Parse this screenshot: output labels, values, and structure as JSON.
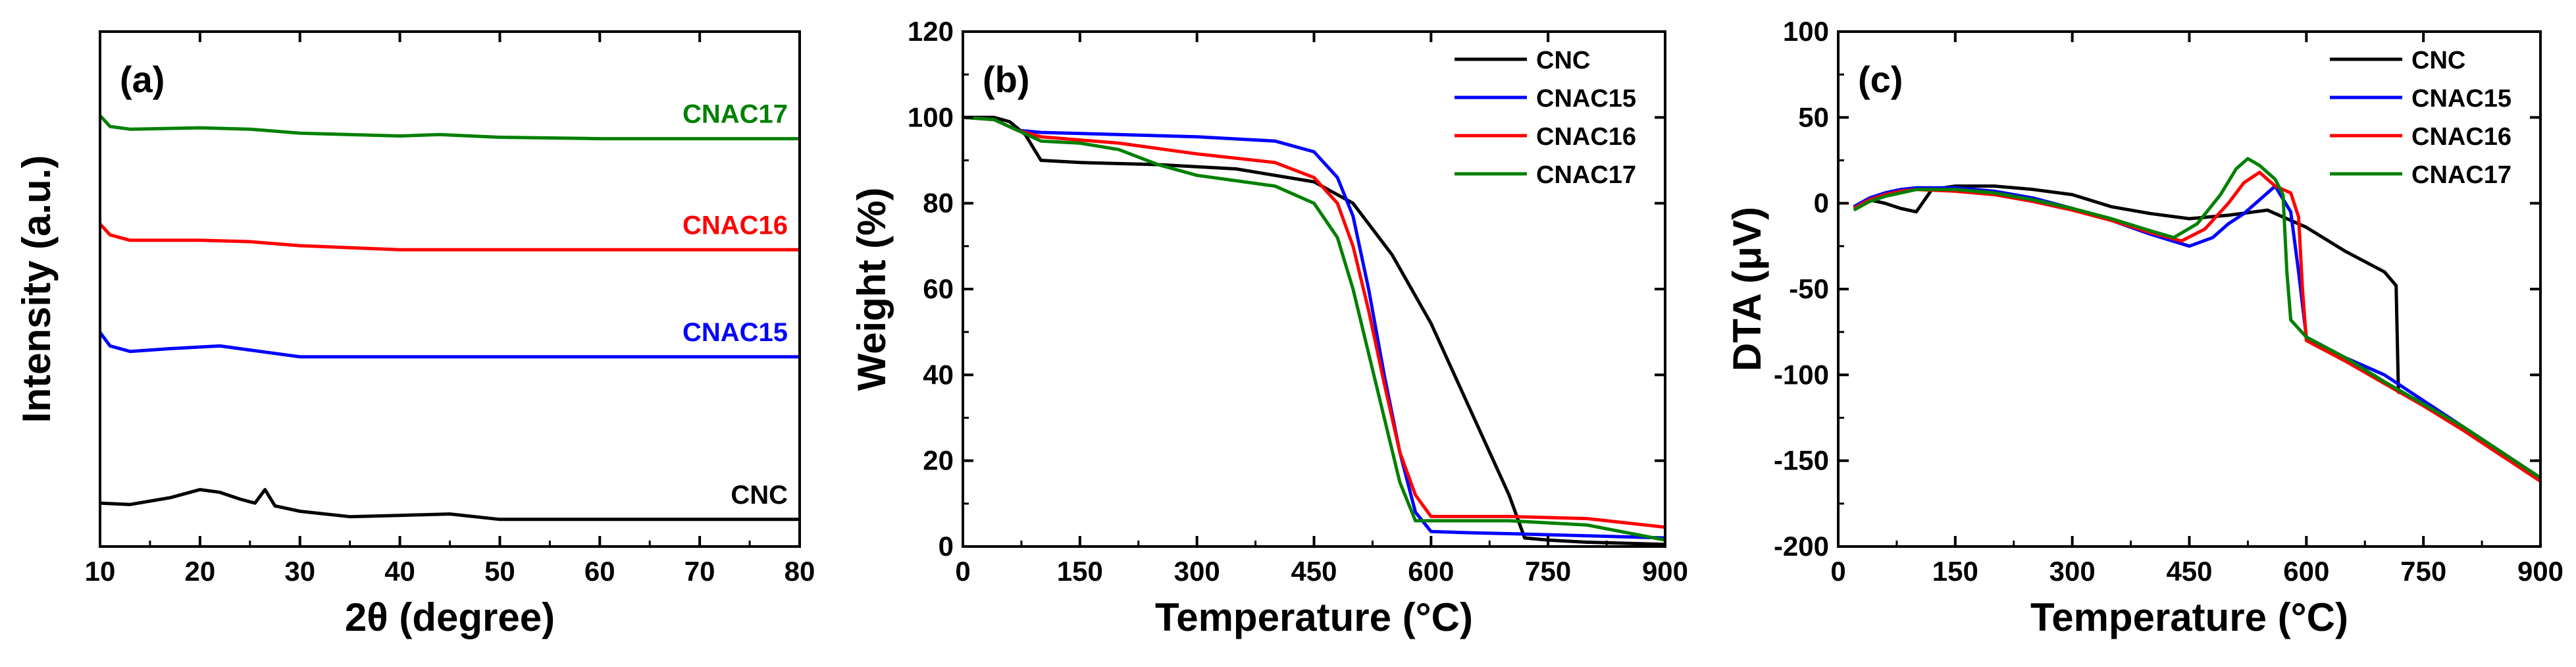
{
  "chart_data": [
    {
      "type": "line",
      "panel_label": "(a)",
      "title": "",
      "xlabel": "2θ (degree)",
      "ylabel": "Intensity (a.u.)",
      "xlim": [
        10,
        80
      ],
      "xticks": [
        "10",
        "20",
        "30",
        "40",
        "50",
        "60",
        "70",
        "80"
      ],
      "y_ticks_shown": false,
      "ylim": [
        -0.2,
        3.6
      ],
      "legend": "inline-right",
      "series": [
        {
          "name": "CNC",
          "color": "#000000",
          "x": [
            10,
            13,
            17,
            20,
            22,
            24,
            25.5,
            26.5,
            27.5,
            30,
            35,
            40,
            45,
            50,
            60,
            70,
            80
          ],
          "y": [
            0.12,
            0.11,
            0.16,
            0.22,
            0.2,
            0.15,
            0.12,
            0.22,
            0.1,
            0.06,
            0.02,
            0.03,
            0.04,
            0.0,
            0.0,
            0.0,
            0.0
          ]
        },
        {
          "name": "CNAC15",
          "color": "#0000ff",
          "x": [
            10,
            11,
            13,
            17,
            22,
            26,
            30,
            40,
            50,
            60,
            70,
            80
          ],
          "y": [
            1.38,
            1.28,
            1.24,
            1.26,
            1.28,
            1.24,
            1.2,
            1.2,
            1.2,
            1.2,
            1.2,
            1.2
          ]
        },
        {
          "name": "CNAC16",
          "color": "#ff0000",
          "x": [
            10,
            11,
            13,
            20,
            25,
            30,
            40,
            50,
            60,
            70,
            80
          ],
          "y": [
            2.18,
            2.1,
            2.06,
            2.06,
            2.05,
            2.02,
            1.99,
            1.99,
            1.99,
            1.99,
            1.99
          ]
        },
        {
          "name": "CNAC17",
          "color": "#008000",
          "x": [
            10,
            11,
            13,
            20,
            25,
            30,
            40,
            44,
            50,
            60,
            70,
            80
          ],
          "y": [
            2.98,
            2.9,
            2.88,
            2.89,
            2.88,
            2.85,
            2.83,
            2.84,
            2.82,
            2.81,
            2.81,
            2.81
          ]
        }
      ]
    },
    {
      "type": "line",
      "panel_label": "(b)",
      "title": "",
      "xlabel": "Temperature (°C)",
      "ylabel": "Weight (%)",
      "xlim": [
        0,
        900
      ],
      "ylim": [
        0,
        120
      ],
      "xticks": [
        "0",
        "150",
        "300",
        "450",
        "600",
        "750",
        "900"
      ],
      "yticks": [
        "0",
        "20",
        "40",
        "60",
        "80",
        "100",
        "120"
      ],
      "legend": "top-right",
      "series": [
        {
          "name": "CNC",
          "color": "#000000",
          "x": [
            0,
            40,
            60,
            80,
            100,
            150,
            250,
            350,
            450,
            500,
            550,
            600,
            650,
            700,
            720,
            750,
            800,
            900
          ],
          "y": [
            100,
            100,
            99,
            96,
            90,
            89.5,
            89,
            88,
            85,
            80,
            68,
            52,
            32,
            12,
            2,
            1.5,
            1,
            0.5
          ]
        },
        {
          "name": "CNAC15",
          "color": "#0000ff",
          "x": [
            0,
            40,
            70,
            100,
            200,
            300,
            400,
            450,
            480,
            500,
            520,
            540,
            560,
            580,
            600,
            650,
            700,
            800,
            900
          ],
          "y": [
            100,
            99.5,
            97,
            96.5,
            96,
            95.5,
            94.5,
            92,
            86,
            77,
            60,
            40,
            22,
            8,
            3.5,
            3.2,
            3,
            2.5,
            2
          ]
        },
        {
          "name": "CNAC16",
          "color": "#ff0000",
          "x": [
            0,
            40,
            70,
            100,
            200,
            300,
            400,
            450,
            480,
            500,
            520,
            540,
            560,
            580,
            600,
            650,
            700,
            800,
            900
          ],
          "y": [
            100,
            99.5,
            97,
            95.5,
            94,
            91.5,
            89.5,
            86,
            80,
            70,
            55,
            38,
            22,
            12,
            7,
            7,
            7,
            6.5,
            4.5
          ]
        },
        {
          "name": "CNAC17",
          "color": "#008000",
          "x": [
            0,
            40,
            70,
            100,
            150,
            200,
            250,
            300,
            400,
            450,
            480,
            500,
            520,
            540,
            560,
            580,
            600,
            650,
            700,
            800,
            900
          ],
          "y": [
            100,
            99.5,
            97,
            94.5,
            94,
            92.5,
            89,
            86.5,
            84,
            80,
            72,
            60,
            45,
            30,
            15,
            6,
            6,
            6,
            6,
            5,
            1.5
          ]
        }
      ]
    },
    {
      "type": "line",
      "panel_label": "(c)",
      "title": "",
      "xlabel": "Temperature (°C)",
      "ylabel": "DTA (μV)",
      "xlim": [
        0,
        900
      ],
      "ylim": [
        -200,
        100
      ],
      "xticks": [
        "0",
        "150",
        "300",
        "450",
        "600",
        "750",
        "900"
      ],
      "yticks": [
        "-200",
        "-150",
        "-100",
        "-50",
        "0",
        "50",
        "100"
      ],
      "legend": "top-right",
      "series": [
        {
          "name": "CNC",
          "color": "#000000",
          "x": [
            20,
            40,
            60,
            80,
            100,
            120,
            150,
            200,
            250,
            300,
            350,
            400,
            450,
            500,
            550,
            600,
            650,
            700,
            715,
            718,
            730,
            750,
            800,
            900
          ],
          "y": [
            -2,
            2,
            0,
            -3,
            -5,
            8,
            10,
            10,
            8,
            5,
            -2,
            -6,
            -9,
            -7,
            -4,
            -14,
            -28,
            -40,
            -48,
            -110,
            -112,
            -117,
            -130,
            -160
          ]
        },
        {
          "name": "CNAC15",
          "color": "#0000ff",
          "x": [
            20,
            40,
            60,
            80,
            100,
            150,
            200,
            250,
            300,
            350,
            400,
            450,
            480,
            500,
            520,
            540,
            560,
            580,
            590,
            600,
            650,
            700,
            750,
            800,
            900
          ],
          "y": [
            -2,
            3,
            6,
            8,
            9,
            9,
            7,
            3,
            -3,
            -10,
            -18,
            -25,
            -20,
            -12,
            -6,
            2,
            10,
            -5,
            -40,
            -78,
            -90,
            -100,
            -115,
            -130,
            -160
          ]
        },
        {
          "name": "CNAC16",
          "color": "#ff0000",
          "x": [
            20,
            40,
            60,
            80,
            100,
            150,
            200,
            250,
            300,
            350,
            400,
            440,
            470,
            500,
            520,
            540,
            560,
            580,
            590,
            595,
            600,
            650,
            700,
            750,
            800,
            900
          ],
          "y": [
            -3,
            2,
            5,
            7,
            8,
            7,
            5,
            1,
            -4,
            -10,
            -17,
            -22,
            -15,
            0,
            12,
            18,
            10,
            6,
            -8,
            -50,
            -80,
            -92,
            -105,
            -118,
            -132,
            -162
          ]
        },
        {
          "name": "CNAC17",
          "color": "#008000",
          "x": [
            20,
            40,
            60,
            80,
            100,
            150,
            200,
            250,
            300,
            350,
            400,
            430,
            460,
            490,
            510,
            525,
            540,
            560,
            570,
            575,
            580,
            600,
            650,
            700,
            750,
            800,
            900
          ],
          "y": [
            -4,
            1,
            4,
            6,
            8,
            8,
            6,
            2,
            -3,
            -9,
            -16,
            -20,
            -12,
            5,
            20,
            26,
            22,
            14,
            5,
            -40,
            -68,
            -78,
            -90,
            -104,
            -117,
            -130,
            -160
          ]
        }
      ]
    }
  ]
}
